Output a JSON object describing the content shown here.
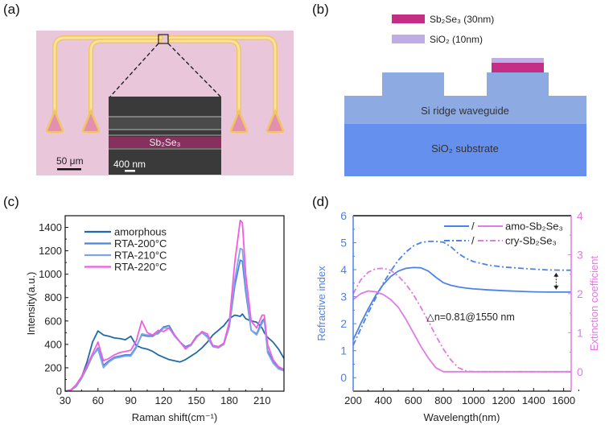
{
  "panels": {
    "a": {
      "label": "(a)",
      "inset_material_label": "Sb₂Se₃",
      "scale_bar_main": "50 μm",
      "scale_bar_inset": "400 nm",
      "colors": {
        "background": "#eac6da",
        "waveguide": "#f6dc86",
        "waveguide_edge": "#f0c660",
        "coupler_fill": "#e58fb0",
        "sem": "#3a3a3a",
        "sb2se3_band": "#86305e"
      }
    },
    "b": {
      "label": "(b)",
      "legend": [
        {
          "label": "Sb₂Se₃ (30nm)",
          "color": "#c42e84"
        },
        {
          "label": "SiO₂ (10nm)",
          "color": "#bfaee6"
        }
      ],
      "layers": {
        "ridge_label": "Si ridge waveguide",
        "substrate_label": "SiO₂ substrate"
      },
      "colors": {
        "ridge": "#8eaae2",
        "substrate": "#6590ee"
      }
    },
    "c": {
      "label": "(c)"
    },
    "d": {
      "label": "(d)"
    }
  },
  "chart_data": [
    {
      "panel": "c",
      "type": "line",
      "xlabel": "Raman shift(cm⁻¹)",
      "ylabel": "Intensity(a.u.)",
      "xlim": [
        30,
        230
      ],
      "ylim": [
        0,
        1500
      ],
      "xticks": [
        30,
        60,
        90,
        120,
        150,
        180,
        210
      ],
      "yticks": [
        0,
        200,
        400,
        600,
        800,
        1000,
        1200,
        1400
      ],
      "legend_position": "top-left",
      "x": [
        30,
        35,
        40,
        45,
        50,
        55,
        60,
        65,
        70,
        75,
        80,
        85,
        90,
        95,
        100,
        105,
        110,
        115,
        120,
        125,
        130,
        135,
        140,
        145,
        150,
        155,
        160,
        165,
        170,
        175,
        180,
        185,
        190,
        192,
        195,
        200,
        205,
        210,
        212,
        215,
        220,
        225,
        230
      ],
      "series": [
        {
          "name": "amorphous",
          "color": "#1f6aa8",
          "values": [
            0,
            10,
            50,
            120,
            250,
            420,
            515,
            480,
            470,
            455,
            450,
            440,
            470,
            390,
            370,
            360,
            340,
            310,
            290,
            270,
            260,
            250,
            270,
            300,
            330,
            370,
            420,
            480,
            520,
            560,
            620,
            650,
            640,
            660,
            620,
            600,
            590,
            540,
            500,
            460,
            420,
            360,
            280
          ]
        },
        {
          "name": "RTA-200°C",
          "color": "#4b84dc",
          "values": [
            0,
            5,
            40,
            110,
            200,
            300,
            370,
            220,
            260,
            290,
            300,
            310,
            310,
            380,
            480,
            470,
            470,
            500,
            550,
            560,
            480,
            420,
            380,
            400,
            470,
            500,
            470,
            390,
            380,
            400,
            550,
            900,
            1120,
            1110,
            850,
            520,
            490,
            600,
            620,
            350,
            250,
            200,
            180
          ]
        },
        {
          "name": "RTA-210°C",
          "color": "#7ea6e6",
          "values": [
            0,
            5,
            45,
            115,
            210,
            300,
            360,
            200,
            250,
            280,
            290,
            300,
            300,
            370,
            490,
            480,
            480,
            490,
            540,
            540,
            470,
            420,
            370,
            390,
            460,
            500,
            460,
            380,
            370,
            400,
            560,
            950,
            1220,
            1210,
            900,
            520,
            480,
            580,
            610,
            330,
            240,
            190,
            175
          ]
        },
        {
          "name": "RTA-220°C",
          "color": "#f35ce0",
          "values": [
            0,
            8,
            55,
            125,
            220,
            320,
            420,
            260,
            280,
            310,
            330,
            340,
            350,
            430,
            600,
            500,
            480,
            520,
            510,
            540,
            480,
            420,
            360,
            400,
            460,
            510,
            490,
            390,
            380,
            410,
            590,
            1100,
            1460,
            1440,
            1000,
            600,
            540,
            650,
            650,
            400,
            270,
            210,
            185
          ]
        }
      ]
    },
    {
      "panel": "d",
      "type": "line",
      "xlabel": "Wavelength(nm)",
      "ylabel_left": "Refractive index",
      "ylabel_right": "Extinction coefficient",
      "xlim": [
        200,
        1650
      ],
      "ylim_left": [
        -0.5,
        6
      ],
      "ylim_right": [
        -0.5,
        4
      ],
      "xticks": [
        200,
        400,
        600,
        800,
        1000,
        1200,
        1400,
        1600
      ],
      "yticks_left": [
        0,
        1,
        2,
        3,
        4,
        5,
        6
      ],
      "yticks_right": [
        0,
        1,
        2,
        3,
        4
      ],
      "left_axis_color": "#4f82e8",
      "right_axis_color": "#e07be0",
      "legend_position": "top-right",
      "legend": [
        {
          "label": "amo-Sb₂Se₃",
          "style": "solid",
          "separator": "/"
        },
        {
          "label": "cry-Sb₂Se₃",
          "style": "dash-dot",
          "separator": "/"
        }
      ],
      "annotation": "△n=0.81@1550 nm",
      "annotation_arrow_x": 1550,
      "x": [
        200,
        250,
        300,
        350,
        400,
        450,
        500,
        550,
        600,
        650,
        700,
        750,
        800,
        850,
        900,
        950,
        1000,
        1100,
        1200,
        1300,
        1400,
        1500,
        1600,
        1650
      ],
      "series": [
        {
          "name": "n amo-Sb2Se3",
          "axis": "left",
          "style": "solid",
          "color": "#4f82e8",
          "values": [
            1.4,
            2.0,
            2.55,
            3.05,
            3.45,
            3.75,
            3.95,
            4.05,
            4.08,
            4.07,
            3.95,
            3.72,
            3.52,
            3.42,
            3.36,
            3.32,
            3.29,
            3.25,
            3.22,
            3.2,
            3.18,
            3.17,
            3.17,
            3.17
          ]
        },
        {
          "name": "n cry-Sb2Se3",
          "axis": "left",
          "style": "dash-dot",
          "color": "#4f82e8",
          "values": [
            1.2,
            1.8,
            2.4,
            2.95,
            3.5,
            3.95,
            4.35,
            4.65,
            4.88,
            5.0,
            5.05,
            5.05,
            5.02,
            4.85,
            4.6,
            4.42,
            4.3,
            4.17,
            4.1,
            4.06,
            4.02,
            3.99,
            3.98,
            3.98
          ]
        },
        {
          "name": "k amo-Sb2Se3",
          "axis": "right",
          "style": "solid",
          "color": "#e07be0",
          "values": [
            1.85,
            2.0,
            2.07,
            2.05,
            1.98,
            1.85,
            1.65,
            1.35,
            1.0,
            0.65,
            0.35,
            0.1,
            0.0,
            0,
            0,
            0,
            0,
            0,
            0,
            0,
            0,
            0,
            0,
            0
          ]
        },
        {
          "name": "k cry-Sb2Se3",
          "axis": "right",
          "style": "dash-dot",
          "color": "#e07be0",
          "values": [
            2.0,
            2.35,
            2.55,
            2.64,
            2.65,
            2.6,
            2.45,
            2.25,
            1.98,
            1.65,
            1.3,
            0.92,
            0.58,
            0.3,
            0.1,
            0.02,
            0,
            0,
            0,
            0,
            0,
            0,
            0,
            0
          ]
        }
      ]
    }
  ]
}
